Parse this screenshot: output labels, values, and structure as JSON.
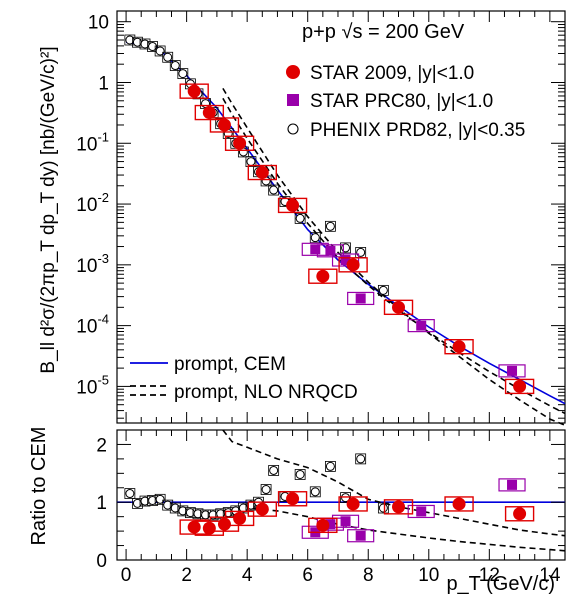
{
  "chart_data": {
    "type": "scatter",
    "title": "p+p √s = 200 GeV",
    "xlabel": "p_T (GeV/c)",
    "x_range": [
      -0.3,
      14.5
    ],
    "x_ticks": [
      "0",
      "2",
      "4",
      "6",
      "8",
      "10",
      "12",
      "14"
    ],
    "legend_position": "top-right",
    "panels": [
      {
        "id": "cross_section",
        "ylabel": "B_ll d²σ/(2πp_T dp_T dy) [nb/(GeV/c)²]",
        "yscale": "log",
        "ylim": [
          2.5e-06,
          15
        ],
        "y_ticks": [
          {
            "value": 10,
            "label": "10"
          },
          {
            "value": 1,
            "label": "1"
          },
          {
            "value": 0.1,
            "label": "10^-1"
          },
          {
            "value": 0.01,
            "label": "10^-2"
          },
          {
            "value": 0.001,
            "label": "10^-3"
          },
          {
            "value": 0.0001,
            "label": "10^-4"
          },
          {
            "value": 1e-05,
            "label": "10^-5"
          }
        ],
        "series": [
          {
            "name": "STAR 2009, |y|<1.0",
            "marker": "circle-filled",
            "color": "#e00000",
            "x": [
              2.25,
              2.75,
              3.25,
              3.75,
              4.5,
              5.5,
              6.5,
              7.5,
              9.0,
              11.0,
              13.0
            ],
            "y": [
              0.72,
              0.32,
              0.2,
              0.1,
              0.033,
              0.0095,
              0.00065,
              0.001,
              0.0002,
              4.5e-05,
              1e-05
            ]
          },
          {
            "name": "STAR PRC80, |y|<1.0",
            "marker": "square-filled",
            "color": "#9900aa",
            "x": [
              6.25,
              6.75,
              7.25,
              7.75,
              9.75,
              12.75
            ],
            "y": [
              0.0018,
              0.0017,
              0.0012,
              0.00028,
              0.0001,
              1.8e-05
            ]
          },
          {
            "name": "PHENIX PRD82, |y|<0.35",
            "marker": "circle-open",
            "color": "#000000",
            "x": [
              0.125,
              0.375,
              0.625,
              0.875,
              1.125,
              1.375,
              1.625,
              1.875,
              2.125,
              2.375,
              2.625,
              2.875,
              3.125,
              3.375,
              3.625,
              3.875,
              4.125,
              4.375,
              4.625,
              4.875,
              5.25,
              5.75,
              6.25,
              6.75,
              7.25,
              7.75,
              8.5
            ],
            "y": [
              5.0,
              4.6,
              4.3,
              3.9,
              3.3,
              2.6,
              1.9,
              1.4,
              0.95,
              0.65,
              0.45,
              0.32,
              0.21,
              0.145,
              0.1,
              0.072,
              0.05,
              0.034,
              0.024,
              0.017,
              0.011,
              0.0058,
              0.0028,
              0.0043,
              0.0019,
              0.0016,
              0.00038
            ]
          }
        ],
        "curves": [
          {
            "name": "prompt, CEM",
            "style": "solid",
            "color": "#0000dd",
            "x": [
              0,
              1,
              2,
              3,
              4,
              5,
              6,
              7,
              8,
              9,
              10,
              11,
              12,
              13,
              14,
              14.5
            ],
            "y": [
              4.6,
              3.9,
              1.3,
              0.38,
              0.082,
              0.017,
              0.0038,
              0.0012,
              0.00048,
              0.00021,
              9.5e-05,
              4.6e-05,
              2.4e-05,
              1.3e-05,
              7e-06,
              5.2e-06
            ]
          },
          {
            "name": "prompt, NLO NRQCD",
            "style": "dashed",
            "color": "#000000",
            "x": [
              3.2,
              3.5,
              4,
              5,
              6,
              7,
              8,
              9,
              10,
              11,
              12,
              13,
              14,
              14.5
            ],
            "y": [
              0.8,
              0.45,
              0.18,
              0.03,
              0.0062,
              0.0016,
              0.00052,
              0.00019,
              7.5e-05,
              3.1e-05,
              1.3e-05,
              6e-06,
              2.9e-06,
              2.3e-06
            ]
          },
          {
            "name": "",
            "style": "dashed",
            "color": "#000000",
            "x": [
              3.2,
              3.5,
              4,
              5,
              6,
              7,
              8,
              9,
              10,
              11,
              12,
              13,
              14,
              14.5
            ],
            "y": [
              0.55,
              0.3,
              0.12,
              0.022,
              0.0048,
              0.0013,
              0.00046,
              0.00018,
              7.8e-05,
              3.6e-05,
              1.75e-05,
              9e-06,
              4.8e-06,
              3.6e-06
            ]
          }
        ]
      },
      {
        "id": "ratio",
        "ylabel": "Ratio to CEM",
        "yscale": "linear",
        "ylim": [
          0,
          2.25
        ],
        "y_ticks": [
          {
            "value": 0,
            "label": "0"
          },
          {
            "value": 1,
            "label": "1"
          },
          {
            "value": 2,
            "label": "2"
          }
        ],
        "reference_line": 1,
        "series": [
          {
            "name": "STAR 2009, |y|<1.0",
            "marker": "circle-filled",
            "color": "#e00000",
            "x": [
              2.25,
              2.75,
              3.25,
              3.75,
              4.5,
              5.5,
              6.5,
              7.5,
              9.0,
              11.0,
              13.0
            ],
            "y": [
              0.57,
              0.55,
              0.62,
              0.72,
              0.88,
              1.06,
              0.6,
              0.97,
              0.92,
              0.97,
              0.8
            ]
          },
          {
            "name": "STAR PRC80, |y|<1.0",
            "marker": "square-filled",
            "color": "#9900aa",
            "x": [
              6.25,
              6.75,
              7.25,
              7.75,
              9.75,
              12.75
            ],
            "y": [
              0.48,
              0.62,
              0.67,
              0.42,
              0.84,
              1.3
            ]
          },
          {
            "name": "PHENIX PRD82, |y|<0.35",
            "marker": "circle-open",
            "color": "#000000",
            "x": [
              0.125,
              0.375,
              0.625,
              0.875,
              1.125,
              1.375,
              1.625,
              1.875,
              2.125,
              2.375,
              2.625,
              2.875,
              3.125,
              3.375,
              3.625,
              3.875,
              4.125,
              4.375,
              4.625,
              4.875,
              5.25,
              5.75,
              6.25,
              6.75,
              7.25,
              7.75,
              8.5
            ],
            "y": [
              1.15,
              0.98,
              1.02,
              1.03,
              1.05,
              0.95,
              0.9,
              0.85,
              0.82,
              0.8,
              0.78,
              0.78,
              0.8,
              0.82,
              0.85,
              0.9,
              0.95,
              1.0,
              1.22,
              1.55,
              1.1,
              1.48,
              1.18,
              1.62,
              1.08,
              1.75,
              0.9
            ]
          }
        ],
        "curves": [
          {
            "name": "prompt, NLO NRQCD",
            "style": "dashed",
            "color": "#000000",
            "x": [
              3.2,
              3.5,
              4,
              5,
              6,
              7,
              8,
              9,
              10,
              11,
              12,
              13,
              14,
              14.5
            ],
            "y": [
              2.25,
              2.05,
              1.95,
              1.75,
              1.6,
              1.35,
              1.05,
              0.92,
              0.82,
              0.72,
              0.62,
              0.52,
              0.45,
              0.42
            ]
          },
          {
            "name": "",
            "style": "dashed",
            "color": "#000000",
            "x": [
              3.2,
              3.5,
              4,
              5,
              6,
              7,
              8,
              9,
              10,
              11,
              12,
              13,
              14,
              14.5
            ],
            "y": [
              0.85,
              0.88,
              0.9,
              0.85,
              0.75,
              0.62,
              0.52,
              0.45,
              0.38,
              0.32,
              0.27,
              0.22,
              0.18,
              0.16
            ]
          }
        ]
      }
    ]
  }
}
